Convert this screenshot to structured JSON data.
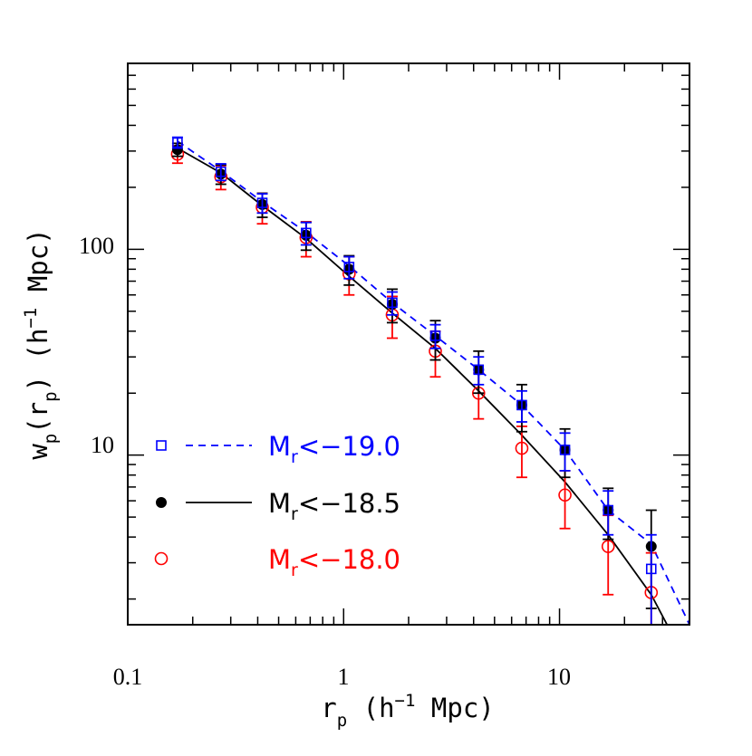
{
  "chart_data": {
    "type": "scatter",
    "xlabel": "r_p (h^-1 Mpc)",
    "ylabel": "w_p(r_p) (h^-1 Mpc)",
    "xscale": "log",
    "yscale": "log",
    "xlim": [
      0.1,
      40
    ],
    "ylim": [
      1.5,
      800
    ],
    "x_tick_labels": [
      "0.1",
      "1",
      "10"
    ],
    "y_tick_labels": [
      "10",
      "100"
    ],
    "legend_position": "bottom-left",
    "series": [
      {
        "name": "M_r<-19.0",
        "label_main": "M",
        "label_sub": "r",
        "label_rest": "<−19.0",
        "color": "#0000ff",
        "marker": "open-square",
        "line": "dashed",
        "x": [
          0.17,
          0.27,
          0.42,
          0.67,
          1.06,
          1.68,
          2.66,
          4.22,
          6.69,
          10.6,
          16.8,
          26.6
        ],
        "y": [
          330,
          238,
          168,
          120,
          82,
          55,
          38,
          26,
          17.5,
          10.6,
          5.4,
          2.8
        ],
        "yerr": [
          20,
          22,
          18,
          15,
          10,
          7,
          5,
          4,
          3.0,
          2.2,
          1.3,
          1.3
        ],
        "model_x": [
          0.17,
          0.27,
          0.42,
          0.67,
          1.06,
          1.68,
          2.66,
          4.22,
          6.69,
          10.6,
          16.8,
          26.6,
          40
        ],
        "model_y": [
          335,
          240,
          170,
          121,
          83,
          55,
          38,
          26,
          17.5,
          10.6,
          5.4,
          3.7,
          1.5
        ]
      },
      {
        "name": "M_r<-18.5",
        "label_main": "M",
        "label_sub": "r",
        "label_rest": "<−18.5",
        "color": "#000000",
        "marker": "filled-circle",
        "line": "solid",
        "x": [
          0.17,
          0.27,
          0.42,
          0.67,
          1.06,
          1.68,
          2.66,
          4.22,
          6.69,
          10.6,
          16.8,
          26.6
        ],
        "y": [
          305,
          232,
          165,
          117,
          80,
          54,
          37,
          26,
          17.5,
          10.6,
          5.4,
          3.6
        ],
        "yerr": [
          22,
          25,
          22,
          18,
          13,
          10,
          8,
          6,
          4.5,
          2.8,
          1.5,
          1.8
        ],
        "model_x": [
          0.17,
          0.27,
          0.42,
          0.67,
          1.06,
          1.68,
          2.66,
          4.22,
          6.69,
          10.6,
          16.8,
          26.6,
          31.5
        ],
        "model_y": [
          310,
          235,
          163,
          113,
          74,
          49,
          33,
          20.5,
          12.5,
          7.4,
          4.1,
          2.1,
          1.5
        ]
      },
      {
        "name": "M_r<-18.0",
        "label_main": "M",
        "label_sub": "r",
        "label_rest": "<−18.0",
        "color": "#ff0000",
        "marker": "open-circle",
        "line": "none",
        "x": [
          0.17,
          0.27,
          0.42,
          0.67,
          1.06,
          1.68,
          2.66,
          4.22,
          6.69,
          10.6,
          16.8,
          26.6
        ],
        "y": [
          290,
          225,
          160,
          114,
          76,
          48,
          32,
          20,
          10.8,
          6.4,
          3.6,
          2.15
        ],
        "yerr": [
          28,
          30,
          27,
          22,
          16,
          11,
          8,
          5,
          3.0,
          2.0,
          1.5,
          1.2
        ]
      }
    ]
  }
}
